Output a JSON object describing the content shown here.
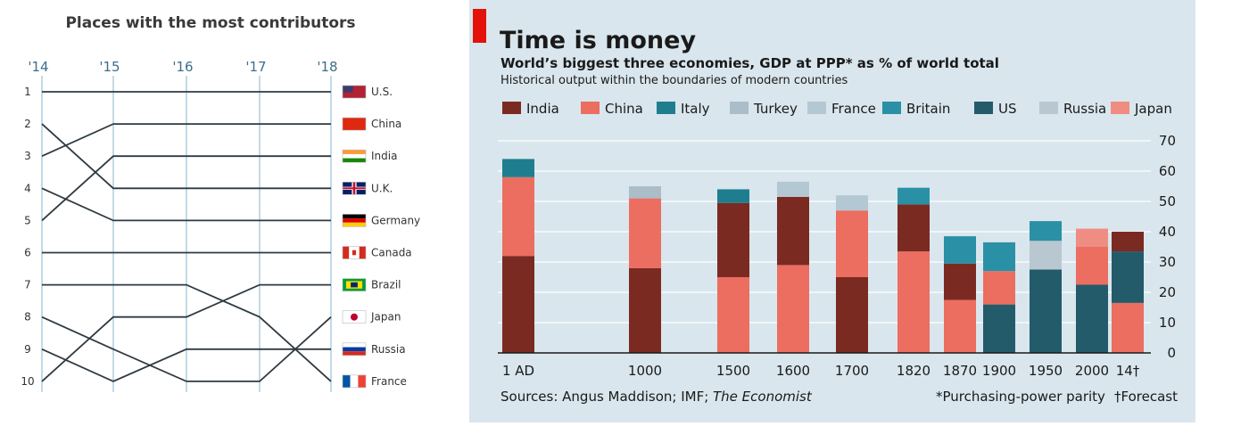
{
  "chart_data": [
    {
      "type": "line",
      "title": "Places with the most contributors",
      "x": [
        "'14",
        "'15",
        "'16",
        "'17",
        "'18"
      ],
      "ranks": [
        "1",
        "2",
        "3",
        "4",
        "5",
        "6",
        "7",
        "8",
        "9",
        "10"
      ],
      "series": [
        {
          "name": "U.S.",
          "values": [
            1,
            1,
            1,
            1,
            1
          ]
        },
        {
          "name": "China",
          "values": [
            3,
            2,
            2,
            2,
            2
          ]
        },
        {
          "name": "India",
          "values": [
            5,
            3,
            3,
            3,
            3
          ]
        },
        {
          "name": "U.K.",
          "values": [
            2,
            4,
            4,
            4,
            4
          ]
        },
        {
          "name": "Germany",
          "values": [
            4,
            5,
            5,
            5,
            5
          ]
        },
        {
          "name": "Canada",
          "values": [
            6,
            6,
            6,
            6,
            6
          ]
        },
        {
          "name": "Brazil",
          "values": [
            7,
            7,
            7,
            8,
            10
          ]
        },
        {
          "name": "Japan",
          "values": [
            10,
            8,
            8,
            7,
            7
          ]
        },
        {
          "name": "Russia",
          "values": [
            8,
            9,
            10,
            10,
            8
          ]
        },
        {
          "name": "France",
          "values": [
            9,
            10,
            9,
            9,
            9
          ]
        }
      ],
      "labels_right": [
        "U.S.",
        "China",
        "India",
        "U.K.",
        "Germany",
        "Canada",
        "Brazil",
        "Japan",
        "Russia",
        "France"
      ],
      "colors": {
        "line": "#2e3a42",
        "grid": "#9cc0d4",
        "year": "#3c6e8c"
      }
    },
    {
      "type": "bar",
      "title": "Time is money",
      "subtitle": "World’s biggest three economies, GDP at PPP* as % of world total",
      "subtitle2": "Historical output within the boundaries of modern countries",
      "categories": [
        "1 AD",
        "1000",
        "1500",
        "1600",
        "1700",
        "1820",
        "1870",
        "1900",
        "1950",
        "2000",
        "14†"
      ],
      "ylim": [
        0,
        70
      ],
      "yticks": [
        0,
        10,
        20,
        30,
        40,
        50,
        60,
        70
      ],
      "legend": [
        "India",
        "China",
        "Italy",
        "Turkey",
        "France",
        "Britain",
        "US",
        "Russia",
        "Japan"
      ],
      "colors": {
        "India": "#7b2a22",
        "China": "#eb6e61",
        "Italy": "#1e7e8f",
        "Turkey": "#aabdc8",
        "France": "#b4c8d3",
        "Britain": "#2a90a5",
        "US": "#235b6b",
        "Russia": "#b8c7d0",
        "Japan": "#ef8d82"
      },
      "stacks": [
        [
          {
            "s": "India",
            "v": 32
          },
          {
            "s": "China",
            "v": 26
          },
          {
            "s": "Italy",
            "v": 6
          }
        ],
        [
          {
            "s": "India",
            "v": 28
          },
          {
            "s": "China",
            "v": 23
          },
          {
            "s": "Turkey",
            "v": 4
          }
        ],
        [
          {
            "s": "China",
            "v": 25
          },
          {
            "s": "India",
            "v": 24.5
          },
          {
            "s": "Italy",
            "v": 4.5
          }
        ],
        [
          {
            "s": "China",
            "v": 29
          },
          {
            "s": "India",
            "v": 22.5
          },
          {
            "s": "France",
            "v": 5
          }
        ],
        [
          {
            "s": "India",
            "v": 25
          },
          {
            "s": "China",
            "v": 22
          },
          {
            "s": "France",
            "v": 5
          }
        ],
        [
          {
            "s": "China",
            "v": 33.5
          },
          {
            "s": "India",
            "v": 15.5
          },
          {
            "s": "Britain",
            "v": 5.5
          }
        ],
        [
          {
            "s": "China",
            "v": 17.5
          },
          {
            "s": "India",
            "v": 12
          },
          {
            "s": "Britain",
            "v": 9
          }
        ],
        [
          {
            "s": "US",
            "v": 16
          },
          {
            "s": "China",
            "v": 11
          },
          {
            "s": "Britain",
            "v": 9.5
          }
        ],
        [
          {
            "s": "US",
            "v": 27.5
          },
          {
            "s": "Russia",
            "v": 9.5
          },
          {
            "s": "Britain",
            "v": 6.5
          }
        ],
        [
          {
            "s": "US",
            "v": 22.5
          },
          {
            "s": "China",
            "v": 12.5
          },
          {
            "s": "Japan",
            "v": 6
          }
        ],
        [
          {
            "s": "China",
            "v": 16.5
          },
          {
            "s": "US",
            "v": 17
          },
          {
            "s": "India",
            "v": 6.5
          }
        ]
      ],
      "sources": "Sources: Angus Maddison; IMF; ",
      "sources_italic": "The Economist",
      "footnote1": "*Purchasing-power parity",
      "footnote2": "†Forecast"
    }
  ]
}
